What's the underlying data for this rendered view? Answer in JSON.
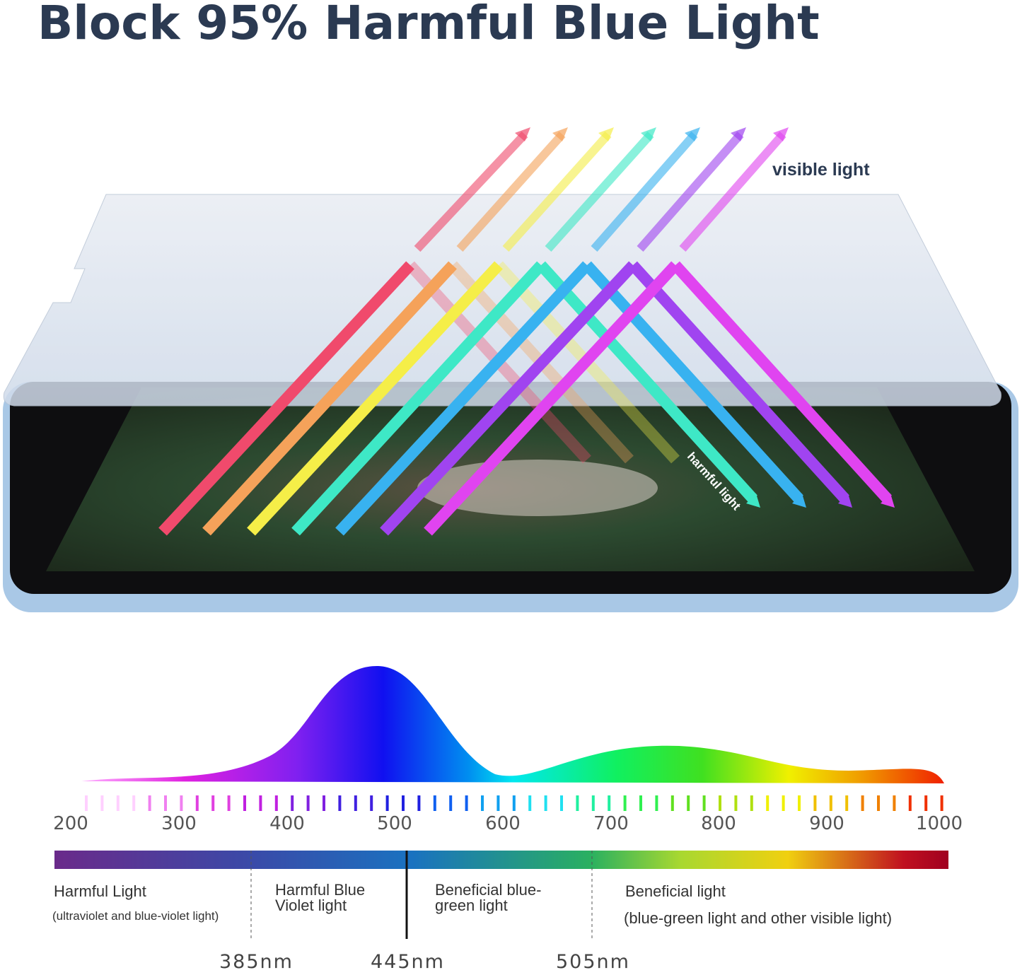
{
  "title": "Block 95% Harmful Blue Light",
  "beam_labels": {
    "visible": "visible light",
    "harmful": "harmful light"
  },
  "beam_colors": [
    "#f04a6c",
    "#f5a25a",
    "#f5ee48",
    "#3ee8c6",
    "#38b2f0",
    "#a044f0",
    "#e044f0"
  ],
  "scale_ticks": [
    "200",
    "300",
    "400",
    "500",
    "600",
    "700",
    "800",
    "900",
    "1000"
  ],
  "regions": [
    {
      "title": "Harmful Light",
      "subtitle": "(ultraviolet and blue-violet light)"
    },
    {
      "title": "Harmful Blue Violet light"
    },
    {
      "title": "Beneficial blue-green light"
    },
    {
      "title": "Beneficial light",
      "subtitle": "(blue-green light and other visible light)"
    }
  ],
  "boundaries": [
    "385nm",
    "445nm",
    "505nm"
  ],
  "colors": {
    "title": "#2b3a52",
    "glass": "#dfe6f0",
    "tablet_frame": "#a9c8e6"
  }
}
